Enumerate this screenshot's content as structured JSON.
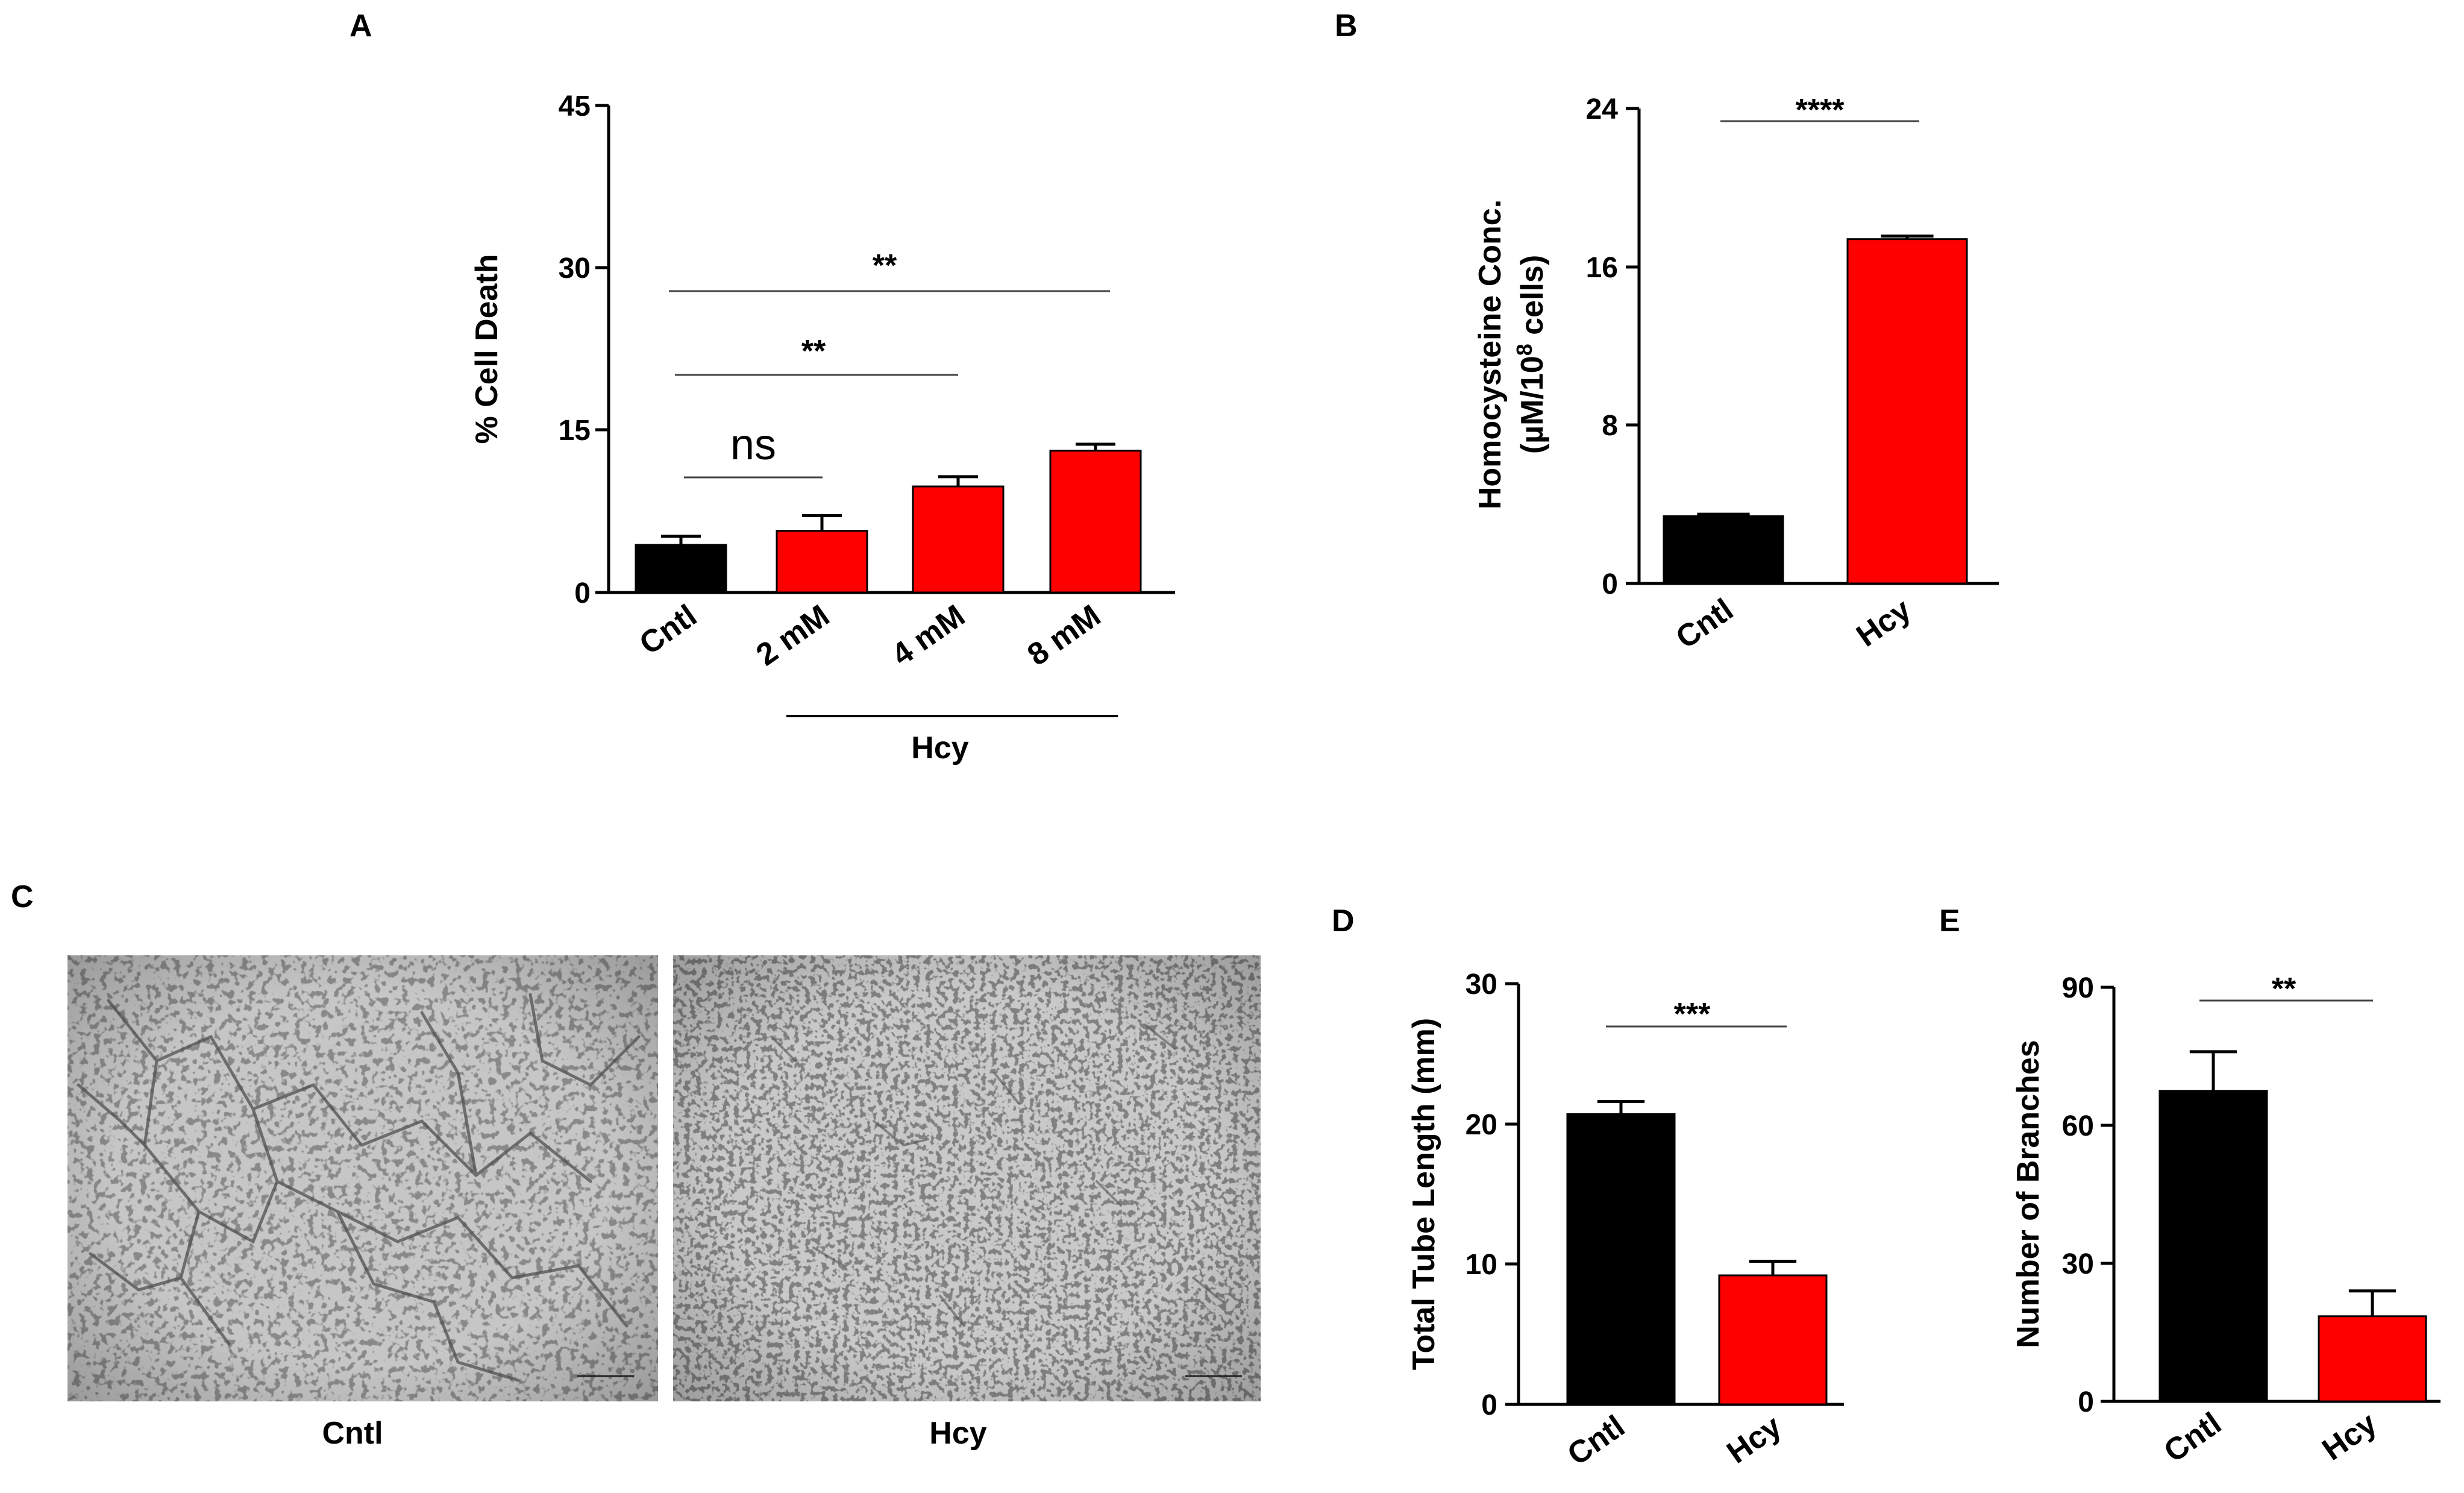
{
  "colors": {
    "control": "#000000",
    "treated": "#ff0000"
  },
  "chart_data": [
    {
      "panel": "A",
      "type": "bar",
      "categories": [
        "Cntl",
        "2 mM",
        "4 mM",
        "8 mM"
      ],
      "values": [
        4.4,
        5.7,
        9.8,
        13.1
      ],
      "errors": [
        0.8,
        1.4,
        0.9,
        0.6
      ],
      "colors": [
        "#000000",
        "#ff0000",
        "#ff0000",
        "#ff0000"
      ],
      "group_label": "Hcy",
      "ylabel": "% Cell Death",
      "ylim": [
        0,
        45
      ],
      "yticks": [
        "0",
        "15",
        "30",
        "45"
      ],
      "comparisons": [
        {
          "from": 0,
          "to": 1,
          "label": "ns"
        },
        {
          "from": 0,
          "to": 2,
          "label": "**"
        },
        {
          "from": 0,
          "to": 3,
          "label": "**"
        }
      ]
    },
    {
      "panel": "B",
      "type": "bar",
      "categories": [
        "Cntl",
        "Hcy"
      ],
      "values": [
        3.4,
        17.4
      ],
      "errors": [
        0.1,
        0.15
      ],
      "colors": [
        "#000000",
        "#ff0000"
      ],
      "ylabel_line1": "Homocysteine Conc.",
      "ylabel_line2_pre": "(µM/10",
      "ylabel_line2_sup": "8",
      "ylabel_line2_post": " cells)",
      "ylim": [
        0,
        24
      ],
      "yticks": [
        "0",
        "8",
        "16",
        "24"
      ],
      "comparisons": [
        {
          "from": 0,
          "to": 1,
          "label": "****"
        }
      ]
    },
    {
      "panel": "D",
      "type": "bar",
      "categories": [
        "Cntl",
        "Hcy"
      ],
      "values": [
        20.7,
        9.2
      ],
      "errors": [
        0.9,
        1.0
      ],
      "colors": [
        "#000000",
        "#ff0000"
      ],
      "ylabel": "Total Tube Length (mm)",
      "ylim": [
        0,
        30
      ],
      "yticks": [
        "0",
        "10",
        "20",
        "30"
      ],
      "comparisons": [
        {
          "from": 0,
          "to": 1,
          "label": "***"
        }
      ]
    },
    {
      "panel": "E",
      "type": "bar",
      "categories": [
        "Cntl",
        "Hcy"
      ],
      "values": [
        67.5,
        18.5
      ],
      "errors": [
        8.5,
        5.5
      ],
      "colors": [
        "#000000",
        "#ff0000"
      ],
      "ylabel": "Number of Branches",
      "ylim": [
        0,
        90
      ],
      "yticks": [
        "0",
        "30",
        "60",
        "90"
      ],
      "comparisons": [
        {
          "from": 0,
          "to": 1,
          "label": "**"
        }
      ]
    }
  ],
  "panel_c": {
    "letter": "C",
    "captions": [
      "Cntl",
      "Hcy"
    ]
  }
}
